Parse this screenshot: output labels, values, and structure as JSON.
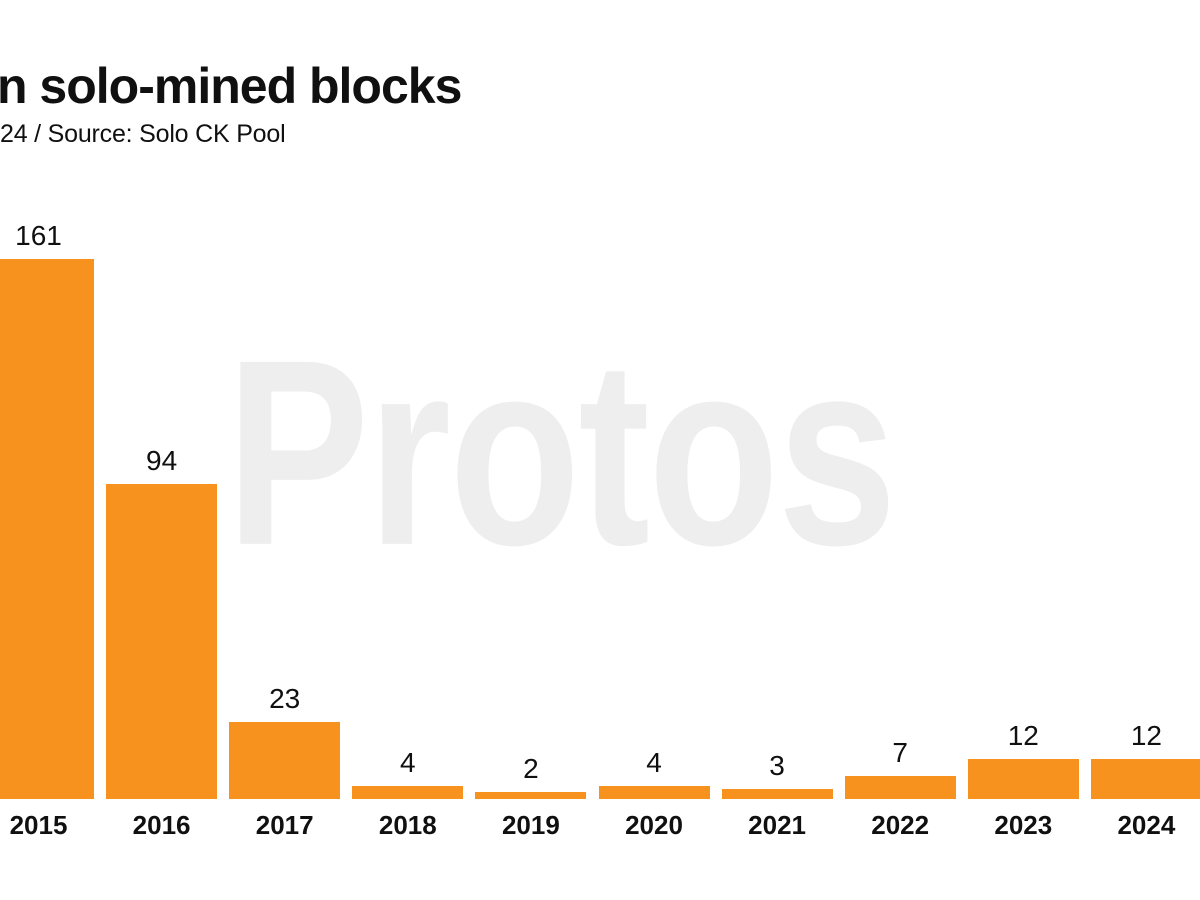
{
  "header": {
    "title": "n solo-mined blocks",
    "subtitle": "24 / Source: Solo CK Pool"
  },
  "watermark": {
    "text": "Protos"
  },
  "colors": {
    "bar": "#F7921E",
    "text": "#101010",
    "watermark": "#EEEEEE",
    "background": "#FFFFFF"
  },
  "chart_data": {
    "type": "bar",
    "categories": [
      "2015",
      "2016",
      "2017",
      "2018",
      "2019",
      "2020",
      "2021",
      "2022",
      "2023",
      "2024"
    ],
    "values": [
      161,
      94,
      23,
      4,
      2,
      4,
      3,
      7,
      12,
      12
    ],
    "title": "n solo-mined blocks",
    "subtitle": "24 / Source: Solo CK Pool",
    "source": "Solo CK Pool",
    "xlabel": "",
    "ylabel": "",
    "ylim": [
      0,
      170
    ],
    "grid": false,
    "legend": false,
    "value_labels": true,
    "bar_color": "#F7921E"
  }
}
